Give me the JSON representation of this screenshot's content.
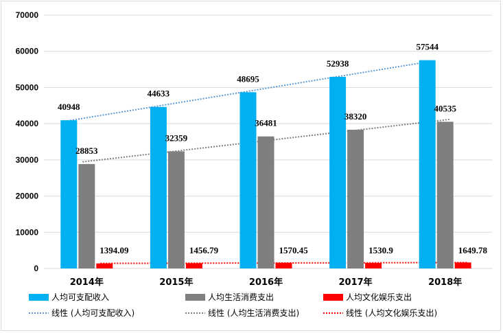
{
  "chart_data": {
    "type": "bar",
    "title": "",
    "xlabel": "",
    "ylabel": "",
    "ylim": [
      0,
      70000
    ],
    "yticks": [
      "0",
      "10000",
      "20000",
      "30000",
      "40000",
      "50000",
      "60000",
      "70000"
    ],
    "grid": true,
    "categories": [
      "2014年",
      "2015年",
      "2016年",
      "2017年",
      "2018年"
    ],
    "series": [
      {
        "name": "人均可支配收入",
        "color": "#00b0f0",
        "values": [
          40948,
          44633,
          48695,
          52938,
          57544
        ],
        "labels": [
          "40948",
          "44633",
          "48695",
          "52938",
          "57544"
        ]
      },
      {
        "name": "人均生活消费支出",
        "color": "#7f7f7f",
        "values": [
          28853,
          32359,
          36481,
          38320,
          40535
        ],
        "labels": [
          "28853",
          "32359",
          "36481",
          "38320",
          "40535"
        ]
      },
      {
        "name": "人均文化娱乐支出",
        "color": "#ff0000",
        "values": [
          1394.09,
          1456.79,
          1570.45,
          1530.9,
          1649.78
        ],
        "labels": [
          "1394.09",
          "1456.79",
          "1570.45",
          "1530.9",
          "1649.78"
        ]
      }
    ],
    "trendlines": [
      {
        "name": "线性 (人均可支配收入)",
        "color": "#5b9bd5",
        "series_index": 0
      },
      {
        "name": "线性 (人均生活消费支出)",
        "color": "#7f7f7f",
        "series_index": 1
      },
      {
        "name": "线性 (人均文化娱乐支出)",
        "color": "#ff0000",
        "series_index": 2
      }
    ],
    "legend_position": "bottom"
  }
}
